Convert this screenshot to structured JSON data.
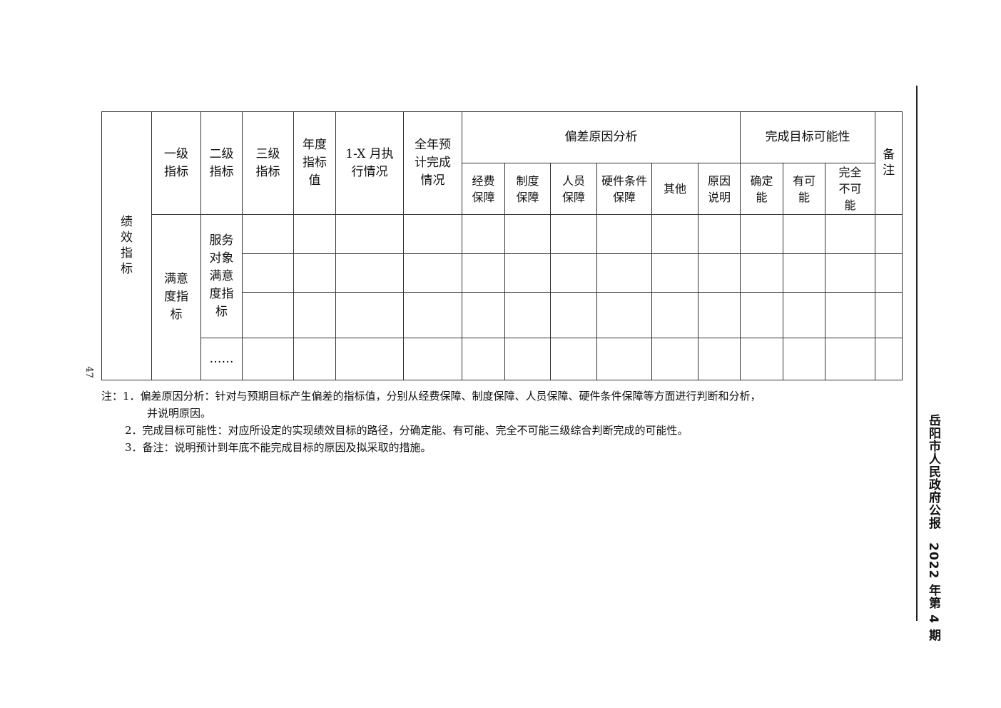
{
  "table": {
    "rowhead": "绩效指标",
    "headers": [
      "一级指标",
      "二级指标",
      "三级指标",
      "年度指标值",
      "1-X 月执行情况",
      "全年预计完成情况"
    ],
    "group_deviation": {
      "label": "偏差原因分析",
      "cols": [
        "经费保障",
        "制度保障",
        "人员保障",
        "硬件条件保障",
        "其他",
        "原因说明"
      ]
    },
    "group_feasibility": {
      "label": "完成目标可能性",
      "cols": [
        "确定能",
        "有可能",
        "完全不可能"
      ]
    },
    "remark": "备注",
    "level1": "满意度指标",
    "level2": "服务对象满意度指标",
    "ellipsis": "……"
  },
  "notes": [
    "注：1．偏差原因分析：针对与预期目标产生偏差的指标值，分别从经费保障、制度保障、人员保障、硬件条件保障等方面进行判断和分析，",
    "并说明原因。",
    "2．完成目标可能性：对应所设定的实现绩效目标的路径，分确定能、有可能、完全不可能三级综合判断完成的可能性。",
    "3．备注：说明预计到年底不能完成目标的原因及拟采取的措施。"
  ],
  "sidebar": "岳阳市人民政府公报　2022 年第 4 期",
  "page_number": "47"
}
